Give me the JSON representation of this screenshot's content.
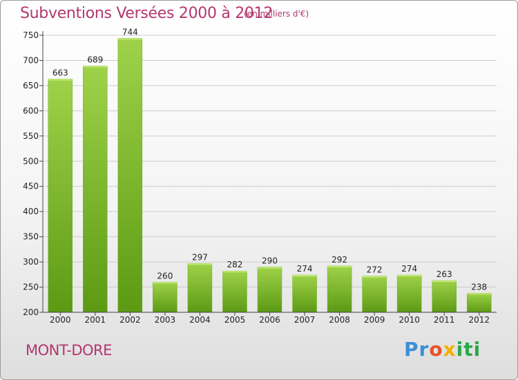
{
  "title": "Subventions Versées 2000 à 2012",
  "subtitle": "(en milliers d'€)",
  "city": "MONT-DORE",
  "logo": {
    "text": "Proxiti",
    "letters": [
      "Pr",
      "o",
      "x",
      "iti"
    ]
  },
  "colors": {
    "title": "#b3366e",
    "bar_top": "#9fd24a",
    "bar_bottom": "#5c9a14",
    "grid": "#cccccc"
  },
  "chart_data": {
    "type": "bar",
    "title": "Subventions Versées 2000 à 2012",
    "subtitle": "(en milliers d'€)",
    "categories": [
      "2000",
      "2001",
      "2002",
      "2003",
      "2004",
      "2005",
      "2006",
      "2007",
      "2008",
      "2009",
      "2010",
      "2011",
      "2012"
    ],
    "values": [
      663,
      689,
      744,
      260,
      297,
      282,
      290,
      274,
      292,
      272,
      274,
      263,
      238
    ],
    "ylim": [
      200,
      750
    ],
    "yticks": [
      200,
      250,
      300,
      350,
      400,
      450,
      500,
      550,
      600,
      650,
      700,
      750
    ],
    "grid": true
  }
}
